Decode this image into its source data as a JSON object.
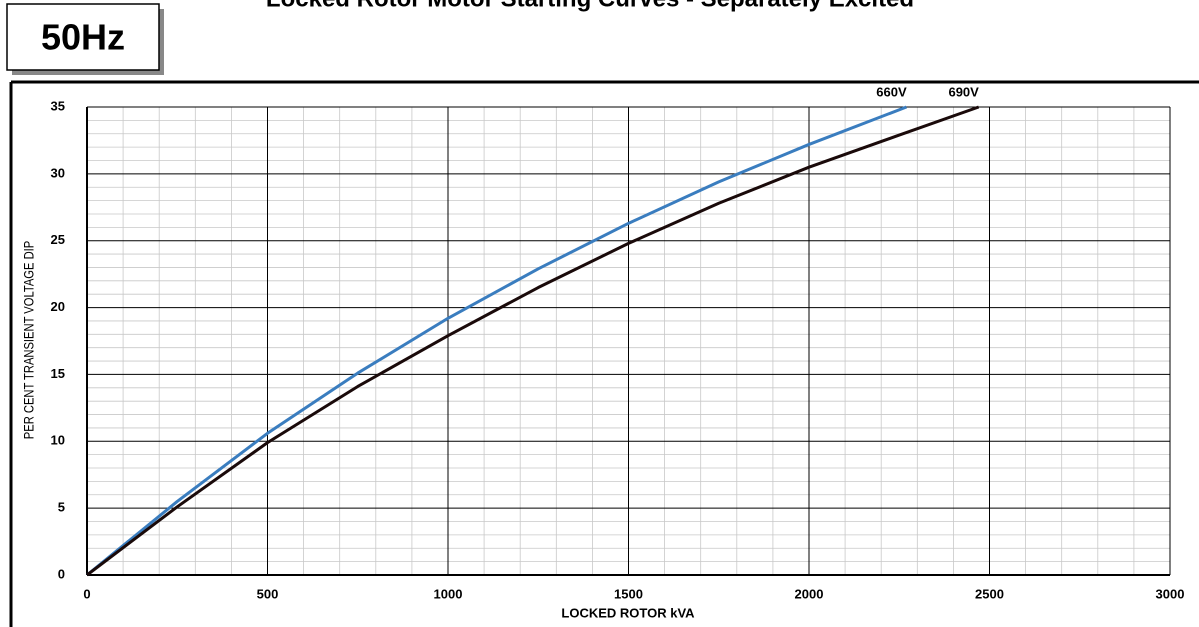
{
  "chart_data": {
    "type": "line",
    "title": "Locked Rotor Motor Starting Curves - Separately Excited",
    "badge": "50Hz",
    "x_label": "LOCKED ROTOR kVA",
    "y_label": "PER CENT TRANSIENT VOLTAGE DIP",
    "xlim": [
      0,
      3000
    ],
    "xticks": [
      0,
      500,
      1000,
      1500,
      2000,
      2500,
      3000
    ],
    "ylim": [
      0,
      35
    ],
    "yticks": [
      0,
      5,
      10,
      15,
      20,
      25,
      30,
      35
    ],
    "grid": true,
    "series": [
      {
        "name": "660V",
        "color": "#3a7dbf",
        "x": [
          0,
          250,
          500,
          750,
          1000,
          1250,
          1500,
          1750,
          2000,
          2270
        ],
        "values": [
          0,
          5.5,
          10.6,
          15.1,
          19.2,
          22.9,
          26.3,
          29.4,
          32.2,
          35
        ]
      },
      {
        "name": "690V",
        "color": "#1a0a0a",
        "x": [
          0,
          250,
          500,
          750,
          1000,
          1250,
          1500,
          1750,
          2000,
          2250,
          2470
        ],
        "values": [
          0,
          5.1,
          9.9,
          14.1,
          17.9,
          21.5,
          24.8,
          27.8,
          30.5,
          32.9,
          35
        ]
      }
    ]
  }
}
